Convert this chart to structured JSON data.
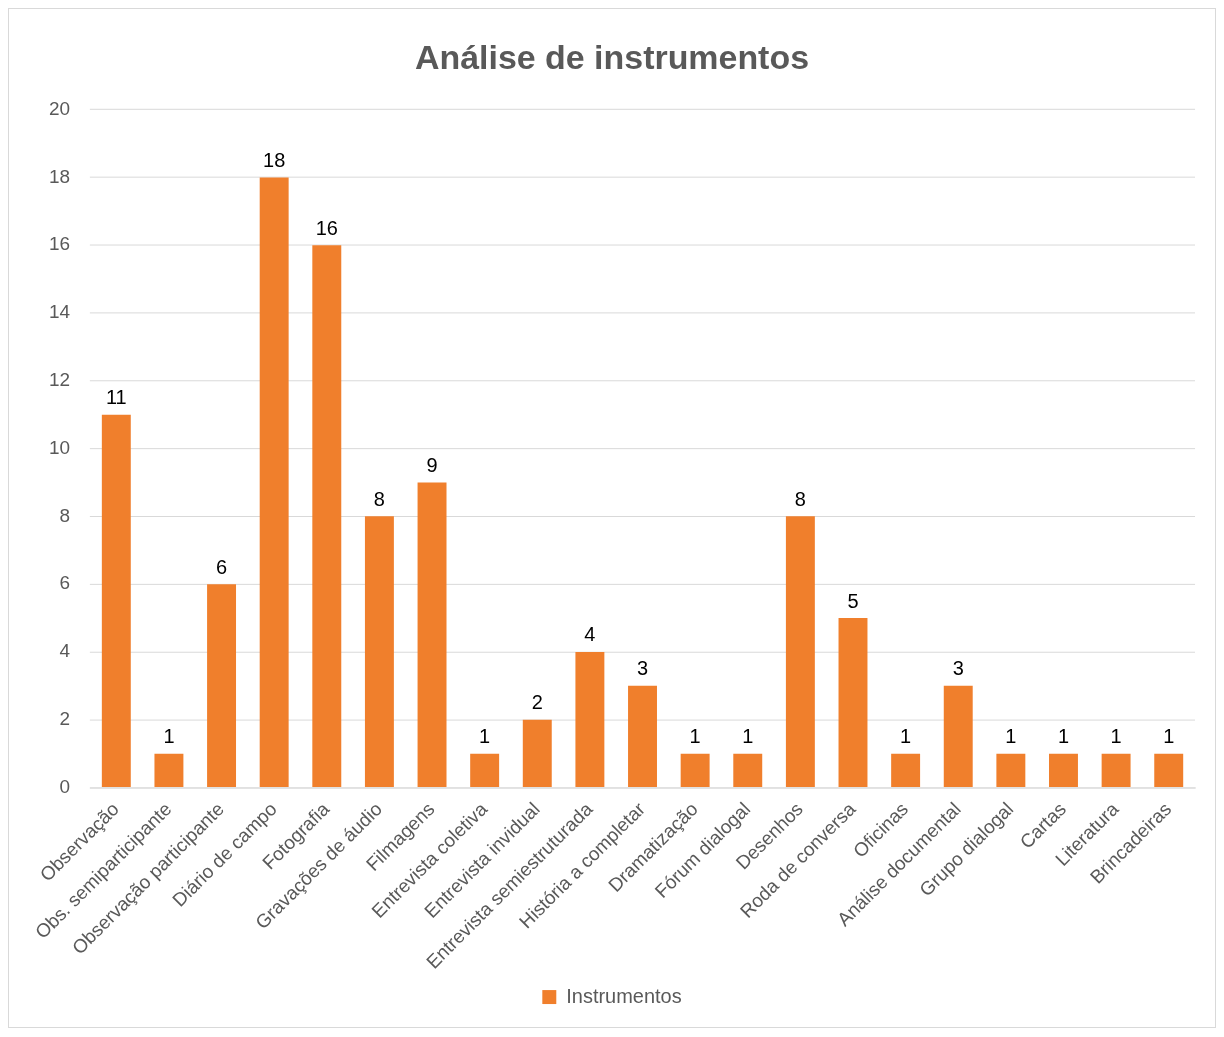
{
  "chart_data": {
    "type": "bar",
    "title": "Análise de instrumentos",
    "categories": [
      "Observação",
      "Obs. semiparticipante",
      "Observação participante",
      "Diário de campo",
      "Fotografia",
      "Gravações de áudio",
      "Filmagens",
      "Entrevista coletiva",
      "Entrevista invidual",
      "Entrevista semiestruturada",
      "História a completar",
      "Dramatização",
      "Fórum dialogal",
      "Desenhos",
      "Roda de conversa",
      "Oficinas",
      "Análise documental",
      "Grupo dialogal",
      "Cartas",
      "Literatura",
      "Brincadeiras"
    ],
    "series": [
      {
        "name": "Instrumentos",
        "color": "#f07f2c",
        "values": [
          11,
          1,
          6,
          18,
          16,
          8,
          9,
          1,
          2,
          4,
          3,
          1,
          1,
          8,
          5,
          1,
          3,
          1,
          1,
          1,
          1
        ]
      }
    ],
    "ylim": [
      0,
      20
    ],
    "yticks": [
      0,
      2,
      4,
      6,
      8,
      10,
      12,
      14,
      16,
      18,
      20
    ],
    "grid": "y",
    "legend": "bottom",
    "data_labels": true
  }
}
